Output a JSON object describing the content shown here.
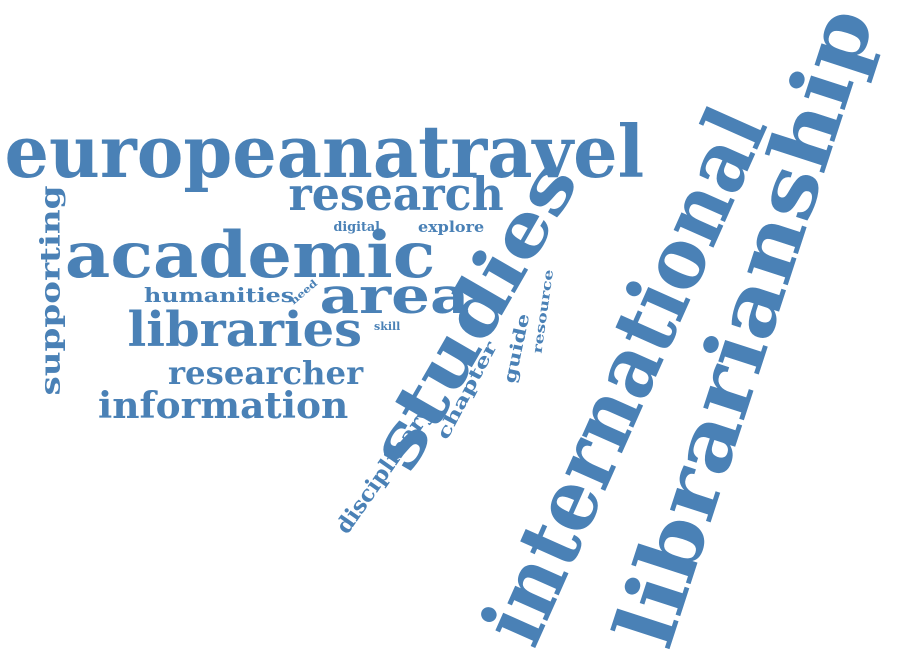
{
  "colors": {
    "word": "#4a81b6",
    "background": "#ffffff"
  },
  "words": {
    "europeanatravel": "europeanatravel",
    "research": "research",
    "digital": "digital",
    "explore": "explore",
    "academic": "academic",
    "supporting": "supporting",
    "humanities": "humanities",
    "need": "need",
    "area": "area",
    "libraries": "libraries",
    "skill": "skill",
    "researcher": "researcher",
    "information": "information",
    "studies": "studies",
    "disciplinary": "disciplinary",
    "chapter": "chapter",
    "guide": "guide",
    "resource": "resource",
    "international": "international",
    "librarianship": "librarianship"
  }
}
